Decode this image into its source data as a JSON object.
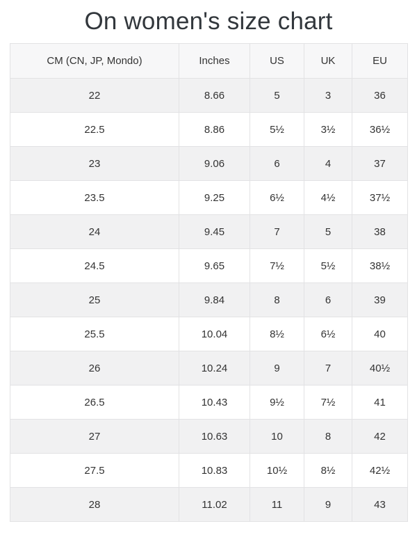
{
  "page": {
    "title": "On women's size chart"
  },
  "table": {
    "headers": [
      "CM (CN, JP, Mondo)",
      "Inches",
      "US",
      "UK",
      "EU"
    ],
    "rows": [
      [
        "22",
        "8.66",
        "5",
        "3",
        "36"
      ],
      [
        "22.5",
        "8.86",
        "5½",
        "3½",
        "36½"
      ],
      [
        "23",
        "9.06",
        "6",
        "4",
        "37"
      ],
      [
        "23.5",
        "9.25",
        "6½",
        "4½",
        "37½"
      ],
      [
        "24",
        "9.45",
        "7",
        "5",
        "38"
      ],
      [
        "24.5",
        "9.65",
        "7½",
        "5½",
        "38½"
      ],
      [
        "25",
        "9.84",
        "8",
        "6",
        "39"
      ],
      [
        "25.5",
        "10.04",
        "8½",
        "6½",
        "40"
      ],
      [
        "26",
        "10.24",
        "9",
        "7",
        "40½"
      ],
      [
        "26.5",
        "10.43",
        "9½",
        "7½",
        "41"
      ],
      [
        "27",
        "10.63",
        "10",
        "8",
        "42"
      ],
      [
        "27.5",
        "10.83",
        "10½",
        "8½",
        "42½"
      ],
      [
        "28",
        "11.02",
        "11",
        "9",
        "43"
      ]
    ]
  },
  "colors": {
    "text": "#333333",
    "title": "#32373c",
    "border": "#e2e2e4",
    "header_bg": "#f7f7f8",
    "stripe_bg": "#f1f1f2",
    "page_bg": "#ffffff"
  }
}
